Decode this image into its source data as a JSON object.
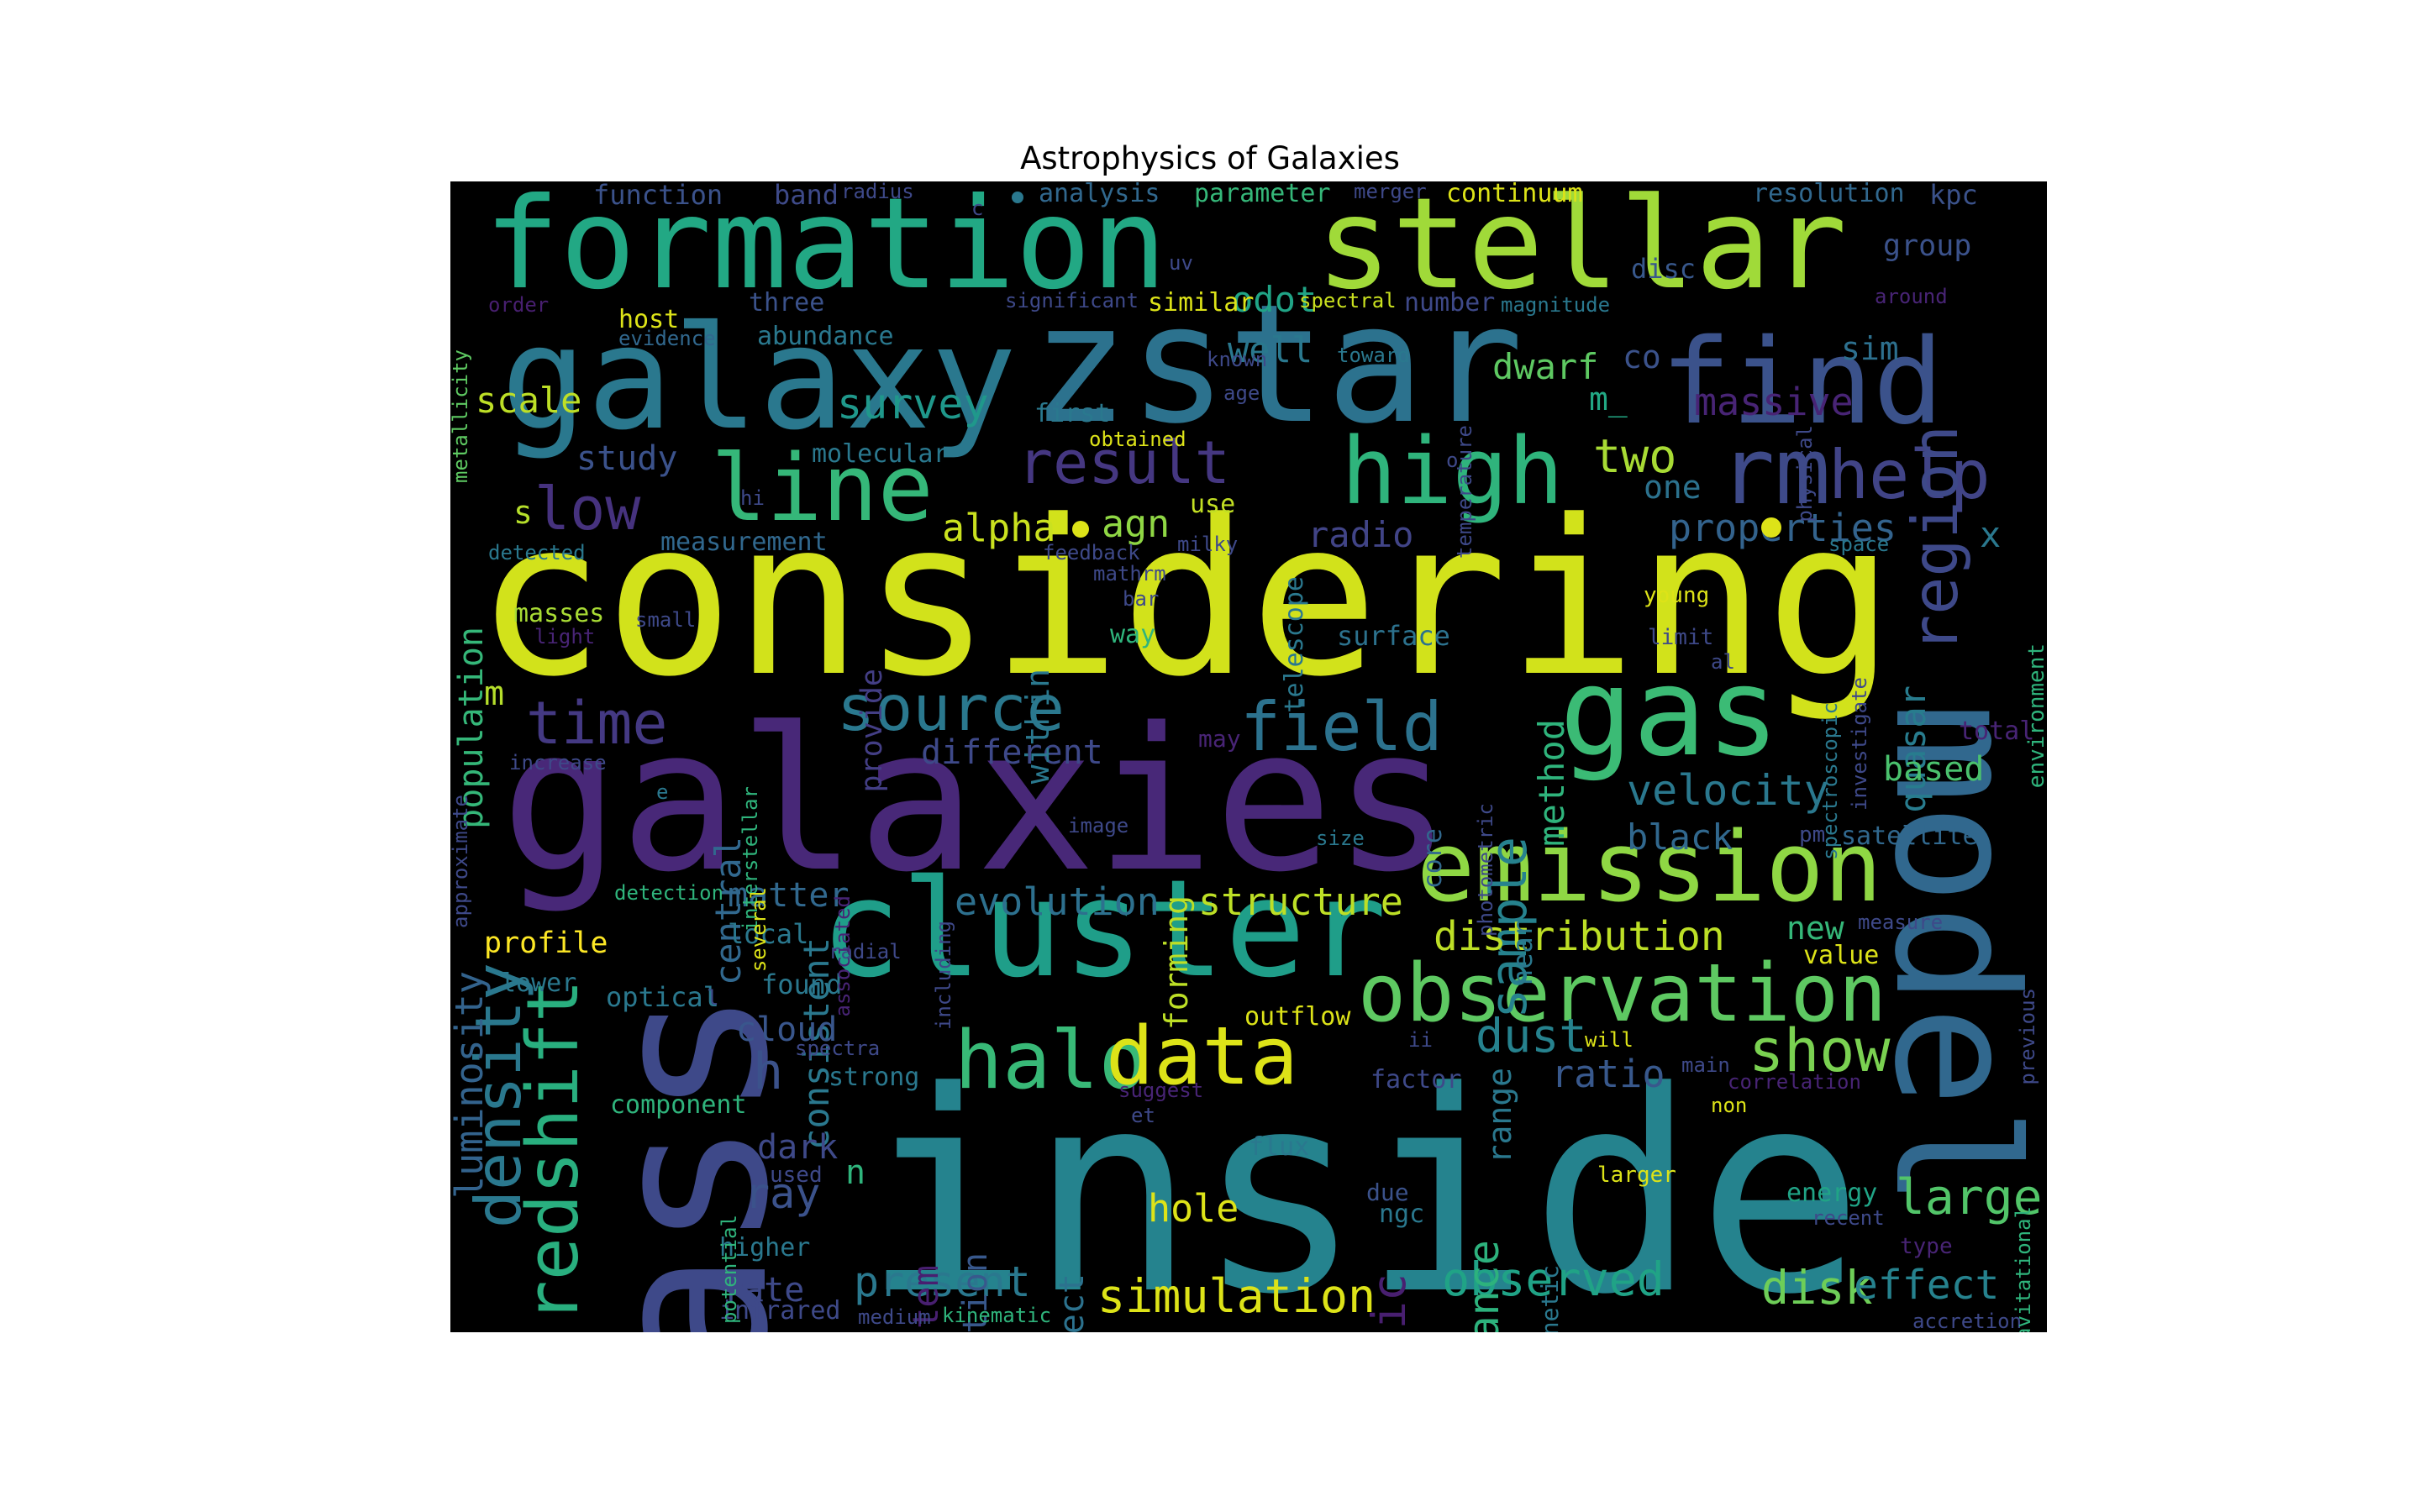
{
  "title": "Astrophysics of Galaxies",
  "colors": {
    "background": "#000000",
    "palette": "viridis"
  },
  "words": [
    {
      "id": "considering",
      "text": "considering",
      "color": "#d2e21b"
    },
    {
      "id": "inside",
      "text": "inside",
      "color": "#25838e"
    },
    {
      "id": "galaxies",
      "text": "galaxies",
      "color": "#482878"
    },
    {
      "id": "mass",
      "text": "mass",
      "color": "#3e4989"
    },
    {
      "id": "model",
      "text": "model",
      "color": "#31688e"
    },
    {
      "id": "zstar",
      "text": "zstar",
      "color": "#2c728e"
    },
    {
      "id": "galaxy",
      "text": "galaxy",
      "color": "#2a788e"
    },
    {
      "id": "formation",
      "text": "formation",
      "color": "#22a884"
    },
    {
      "id": "stellar",
      "text": "stellar",
      "color": "#a0da39"
    },
    {
      "id": "cluster",
      "text": "cluster",
      "color": "#1f9e89"
    },
    {
      "id": "emission",
      "text": "emission",
      "color": "#8fd744"
    },
    {
      "id": "find",
      "text": "find",
      "color": "#3b528b"
    },
    {
      "id": "gas",
      "text": "gas",
      "color": "#3bbb75"
    },
    {
      "id": "observation",
      "text": "observation",
      "color": "#5ec962"
    },
    {
      "id": "high",
      "text": "high",
      "color": "#2fb47c"
    },
    {
      "id": "line",
      "text": "line",
      "color": "#35b779"
    },
    {
      "id": "redshift",
      "text": "redshift",
      "color": "#29af7f"
    },
    {
      "id": "density",
      "text": "density",
      "color": "#2a788e"
    },
    {
      "id": "halo",
      "text": "halo",
      "color": "#38b977"
    },
    {
      "id": "data",
      "text": "data",
      "color": "#dde318"
    },
    {
      "id": "rm",
      "text": "rm",
      "color": "#3e4a89"
    },
    {
      "id": "help",
      "text": "help",
      "color": "#414487"
    },
    {
      "id": "region",
      "text": "region",
      "color": "#3e4989"
    },
    {
      "id": "source",
      "text": "source",
      "color": "#2a788e"
    },
    {
      "id": "field",
      "text": "field",
      "color": "#2c728e"
    },
    {
      "id": "time",
      "text": "time",
      "color": "#443983"
    },
    {
      "id": "low",
      "text": "low",
      "color": "#46327e"
    },
    {
      "id": "result",
      "text": "result",
      "color": "#453781"
    },
    {
      "id": "show",
      "text": "show",
      "color": "#7ad151"
    },
    {
      "id": "sample",
      "text": "sample",
      "color": "#26828e"
    },
    {
      "id": "galactic",
      "text": "galactic",
      "color": "#481f70"
    },
    {
      "id": "large",
      "text": "large",
      "color": "#52c569"
    },
    {
      "id": "luminosity",
      "text": "luminosity",
      "color": "#33638d"
    },
    {
      "id": "population",
      "text": "population",
      "color": "#35b779"
    },
    {
      "id": "dust",
      "text": "dust",
      "color": "#26828e"
    },
    {
      "id": "simulation",
      "text": "simulation",
      "color": "#dde318"
    },
    {
      "id": "observed",
      "text": "observed",
      "color": "#20a386"
    },
    {
      "id": "distribution",
      "text": "distribution",
      "color": "#bddf26"
    },
    {
      "id": "evolution",
      "text": "evolution",
      "color": "#2d708e"
    },
    {
      "id": "structure",
      "text": "structure",
      "color": "#bddf26"
    },
    {
      "id": "velocity",
      "text": "velocity",
      "color": "#2a788e"
    },
    {
      "id": "survey",
      "text": "survey",
      "color": "#1f988b"
    },
    {
      "id": "two",
      "text": "two",
      "color": "#a8db34"
    },
    {
      "id": "massive",
      "text": "massive",
      "color": "#482475"
    },
    {
      "id": "distance",
      "text": "distance",
      "color": "#2db27d"
    },
    {
      "id": "ratio",
      "text": "ratio",
      "color": "#38588c"
    },
    {
      "id": "present",
      "text": "present",
      "color": "#2a788e"
    },
    {
      "id": "disk",
      "text": "disk",
      "color": "#6ece58"
    },
    {
      "id": "effect",
      "text": "effect",
      "color": "#26828e"
    },
    {
      "id": "hole",
      "text": "hole",
      "color": "#dde318"
    },
    {
      "id": "ray",
      "text": "ray",
      "color": "#3b528b"
    },
    {
      "id": "h",
      "text": "h",
      "color": "#3b528b"
    },
    {
      "id": "consistent",
      "text": "consistent",
      "color": "#2a788e"
    },
    {
      "id": "properties",
      "text": "properties",
      "color": "#33638d"
    },
    {
      "id": "alpha",
      "text": "alpha",
      "color": "#cae11f"
    },
    {
      "id": "agn",
      "text": "agn",
      "color": "#8fd744"
    },
    {
      "id": "radio",
      "text": "radio",
      "color": "#414487"
    },
    {
      "id": "fraction",
      "text": "fraction",
      "color": "#3e4989"
    },
    {
      "id": "method",
      "text": "method",
      "color": "#2fb47c"
    },
    {
      "id": "quasar",
      "text": "quasar",
      "color": "#287c8e"
    },
    {
      "id": "dwarf",
      "text": "dwarf",
      "color": "#5ec962"
    },
    {
      "id": "black",
      "text": "black",
      "color": "#31688e"
    },
    {
      "id": "based",
      "text": "based",
      "color": "#4ac16d"
    },
    {
      "id": "scale",
      "text": "scale",
      "color": "#bddf26"
    },
    {
      "id": "study",
      "text": "study",
      "color": "#3b528b"
    },
    {
      "id": "central",
      "text": "central",
      "color": "#31688e"
    },
    {
      "id": "matter",
      "text": "matter",
      "color": "#31688e"
    },
    {
      "id": "different",
      "text": "different",
      "color": "#3e4989"
    },
    {
      "id": "cloud",
      "text": "cloud",
      "color": "#39568c"
    },
    {
      "id": "dark",
      "text": "dark",
      "color": "#3e4989"
    },
    {
      "id": "system",
      "text": "system",
      "color": "#481f70"
    },
    {
      "id": "relation",
      "text": "relation",
      "color": "#38588c"
    },
    {
      "id": "object",
      "text": "object",
      "color": "#2c728e"
    },
    {
      "id": "rate",
      "text": "rate",
      "color": "#3e4989"
    },
    {
      "id": "profile",
      "text": "profile",
      "color": "#fde725"
    },
    {
      "id": "new",
      "text": "new",
      "color": "#35b779"
    },
    {
      "id": "odot",
      "text": "odot",
      "color": "#20a486"
    },
    {
      "id": "well",
      "text": "well",
      "color": "#2a788e"
    },
    {
      "id": "m_",
      "text": "m_",
      "color": "#22a884"
    },
    {
      "id": "co",
      "text": "co",
      "color": "#3b528b"
    },
    {
      "id": "sim",
      "text": "sim",
      "color": "#2d708e"
    },
    {
      "id": "one",
      "text": "one",
      "color": "#2c728e"
    },
    {
      "id": "x",
      "text": "x",
      "color": "#2a788e"
    },
    {
      "id": "s",
      "text": "s",
      "color": "#b5de2b"
    },
    {
      "id": "m",
      "text": "m",
      "color": "#b5de2b"
    },
    {
      "id": "n",
      "text": "n",
      "color": "#2fb47c"
    },
    {
      "id": "forming",
      "text": "forming",
      "color": "#bddf26"
    },
    {
      "id": "within",
      "text": "within",
      "color": "#2a788e"
    },
    {
      "id": "provide",
      "text": "provide",
      "color": "#433e85"
    },
    {
      "id": "near",
      "text": "near",
      "color": "#2a788e"
    },
    {
      "id": "range",
      "text": "range",
      "color": "#2a788e"
    },
    {
      "id": "function",
      "text": "function",
      "color": "#3b528b"
    },
    {
      "id": "band",
      "text": "band",
      "color": "#3e4a89"
    },
    {
      "id": "analysis",
      "text": "analysis",
      "color": "#31688e"
    },
    {
      "id": "parameter",
      "text": "parameter",
      "color": "#35b779"
    },
    {
      "id": "continuum",
      "text": "continuum",
      "color": "#dde318"
    },
    {
      "id": "resolution",
      "text": "resolution",
      "color": "#31688e"
    },
    {
      "id": "kpc",
      "text": "kpc",
      "color": "#3b528b"
    },
    {
      "id": "group",
      "text": "group",
      "color": "#3b528b"
    },
    {
      "id": "disc",
      "text": "disc",
      "color": "#38588c"
    },
    {
      "id": "host",
      "text": "host",
      "color": "#dde318"
    },
    {
      "id": "abundance",
      "text": "abundance",
      "color": "#2a788e"
    },
    {
      "id": "three",
      "text": "three",
      "color": "#3b528b"
    },
    {
      "id": "similar",
      "text": "similar",
      "color": "#dde318"
    },
    {
      "id": "number",
      "text": "number",
      "color": "#3e4989"
    },
    {
      "id": "first",
      "text": "first",
      "color": "#2a788e"
    },
    {
      "id": "molecular",
      "text": "molecular",
      "color": "#2a788e"
    },
    {
      "id": "measurement",
      "text": "measurement",
      "color": "#31688e"
    },
    {
      "id": "use",
      "text": "use",
      "color": "#c2df23"
    },
    {
      "id": "way",
      "text": "way",
      "color": "#2fb47c"
    },
    {
      "id": "surface",
      "text": "surface",
      "color": "#2c728e"
    },
    {
      "id": "masses",
      "text": "masses",
      "color": "#a8db34"
    },
    {
      "id": "lower",
      "text": "lower",
      "color": "#2a788e"
    },
    {
      "id": "optical",
      "text": "optical",
      "color": "#2a788e"
    },
    {
      "id": "found",
      "text": "found",
      "color": "#2a788e"
    },
    {
      "id": "local",
      "text": "local",
      "color": "#2a788e"
    },
    {
      "id": "component",
      "text": "component",
      "color": "#2fb47c"
    },
    {
      "id": "strong",
      "text": "strong",
      "color": "#2a788e"
    },
    {
      "id": "higher",
      "text": "higher",
      "color": "#2a788e"
    },
    {
      "id": "infrared",
      "text": "infrared",
      "color": "#3e4989"
    },
    {
      "id": "outflow",
      "text": "outflow",
      "color": "#dde318"
    },
    {
      "id": "factor",
      "text": "factor",
      "color": "#3e4989"
    },
    {
      "id": "flux",
      "text": "flux",
      "color": "#2a788e"
    },
    {
      "id": "due",
      "text": "due",
      "color": "#3b528b"
    },
    {
      "id": "ngc",
      "text": "ngc",
      "color": "#2a788e"
    },
    {
      "id": "energy",
      "text": "energy",
      "color": "#20a486"
    },
    {
      "id": "value",
      "text": "value",
      "color": "#dde318"
    },
    {
      "id": "satellite",
      "text": "satellite",
      "color": "#31688e"
    },
    {
      "id": "environment",
      "text": "environment",
      "color": "#2fb47c"
    },
    {
      "id": "telescope",
      "text": "telescope",
      "color": "#2a788e"
    },
    {
      "id": "magnetic",
      "text": "magnetic",
      "color": "#2a788e"
    },
    {
      "id": "core",
      "text": "core",
      "color": "#31688e"
    },
    {
      "id": "young",
      "text": "young",
      "color": "#dde318"
    },
    {
      "id": "limit",
      "text": "limit",
      "color": "#3e4989"
    },
    {
      "id": "total",
      "text": "total",
      "color": "#482475"
    },
    {
      "id": "used",
      "text": "used",
      "color": "#3e4989"
    },
    {
      "id": "radius",
      "text": "radius",
      "color": "#3e4989"
    },
    {
      "id": "merger",
      "text": "merger",
      "color": "#3e4989"
    },
    {
      "id": "order",
      "text": "order",
      "color": "#481f70"
    },
    {
      "id": "evidence",
      "text": "evidence",
      "color": "#31688e"
    },
    {
      "id": "significant",
      "text": "significant",
      "color": "#3e4989"
    },
    {
      "id": "spectral",
      "text": "spectral",
      "color": "#cae11f"
    },
    {
      "id": "magnitude",
      "text": "magnitude",
      "color": "#2a788e"
    },
    {
      "id": "around",
      "text": "around",
      "color": "#482475"
    },
    {
      "id": "uv",
      "text": "uv",
      "color": "#3e4989"
    },
    {
      "id": "toward",
      "text": "toward",
      "color": "#2a788e"
    },
    {
      "id": "known",
      "text": "known",
      "color": "#3e4989"
    },
    {
      "id": "age",
      "text": "age",
      "color": "#3e4989"
    },
    {
      "id": "obtained",
      "text": "obtained",
      "color": "#dde318"
    },
    {
      "id": "hi",
      "text": "hi",
      "color": "#3e4989"
    },
    {
      "id": "detected",
      "text": "detected",
      "color": "#2a788e"
    },
    {
      "id": "light",
      "text": "light",
      "color": "#482475"
    },
    {
      "id": "small",
      "text": "small",
      "color": "#3e4989"
    },
    {
      "id": "feedback",
      "text": "feedback",
      "color": "#3e4989"
    },
    {
      "id": "mathrm",
      "text": "mathrm",
      "color": "#3e4989"
    },
    {
      "id": "milky",
      "text": "milky",
      "color": "#3e4989"
    },
    {
      "id": "bar",
      "text": "bar",
      "color": "#3e4989"
    },
    {
      "id": "space",
      "text": "space",
      "color": "#2a788e"
    },
    {
      "id": "al",
      "text": "al",
      "color": "#3e4989"
    },
    {
      "id": "may",
      "text": "may",
      "color": "#482475"
    },
    {
      "id": "increase",
      "text": "increase",
      "color": "#3e4989"
    },
    {
      "id": "e",
      "text": "e",
      "color": "#2a788e"
    },
    {
      "id": "image",
      "text": "image",
      "color": "#3e4989"
    },
    {
      "id": "size",
      "text": "size",
      "color": "#2a788e"
    },
    {
      "id": "pm",
      "text": "pm",
      "color": "#3e4989"
    },
    {
      "id": "detection",
      "text": "detection",
      "color": "#2fb47c"
    },
    {
      "id": "radial",
      "text": "radial",
      "color": "#3e4989"
    },
    {
      "id": "spectra",
      "text": "spectra",
      "color": "#3e4989"
    },
    {
      "id": "suggest",
      "text": "suggest",
      "color": "#482475"
    },
    {
      "id": "et",
      "text": "et",
      "color": "#3e4989"
    },
    {
      "id": "ii",
      "text": "ii",
      "color": "#3e4989"
    },
    {
      "id": "will",
      "text": "will",
      "color": "#dde318"
    },
    {
      "id": "main",
      "text": "main",
      "color": "#3e4989"
    },
    {
      "id": "non",
      "text": "non",
      "color": "#dde318"
    },
    {
      "id": "correlation",
      "text": "correlation",
      "color": "#482475"
    },
    {
      "id": "measure",
      "text": "measure",
      "color": "#3e4989"
    },
    {
      "id": "larger",
      "text": "larger",
      "color": "#dde318"
    },
    {
      "id": "recent",
      "text": "recent",
      "color": "#3e4989"
    },
    {
      "id": "type",
      "text": "type",
      "color": "#482475"
    },
    {
      "id": "medium",
      "text": "medium",
      "color": "#3e4989"
    },
    {
      "id": "kinematic",
      "text": "kinematic",
      "color": "#2fb47c"
    },
    {
      "id": "accretion",
      "text": "accretion",
      "color": "#3e4989"
    },
    {
      "id": "metallicity",
      "text": "metallicity",
      "color": "#5ec962"
    },
    {
      "id": "approximate",
      "text": "approximate",
      "color": "#3e4989"
    },
    {
      "id": "interstellar",
      "text": "interstellar",
      "color": "#2fb47c"
    },
    {
      "id": "several",
      "text": "several",
      "color": "#dde318"
    },
    {
      "id": "associated",
      "text": "associated",
      "color": "#482475"
    },
    {
      "id": "including",
      "text": "including",
      "color": "#3e4989"
    },
    {
      "id": "photometric",
      "text": "photometric",
      "color": "#3e4989"
    },
    {
      "id": "temperature",
      "text": "temperature",
      "color": "#3e4989"
    },
    {
      "id": "physical",
      "text": "physical",
      "color": "#3e4989"
    },
    {
      "id": "spectroscopic",
      "text": "spectroscopic",
      "color": "#2a788e"
    },
    {
      "id": "investigate",
      "text": "investigate",
      "color": "#3e4989"
    },
    {
      "id": "previous",
      "text": "previous",
      "color": "#3e4989"
    },
    {
      "id": "gravitational",
      "text": "gravitational",
      "color": "#2fb47c"
    },
    {
      "id": "potential",
      "text": "potential",
      "color": "#2fb47c"
    },
    {
      "id": "c",
      "text": "c",
      "color": "#3e4989"
    },
    {
      "id": "o",
      "text": "o",
      "color": "#3e4989"
    },
    {
      "id": "l",
      "text": "l",
      "color": "#3e4989"
    }
  ]
}
